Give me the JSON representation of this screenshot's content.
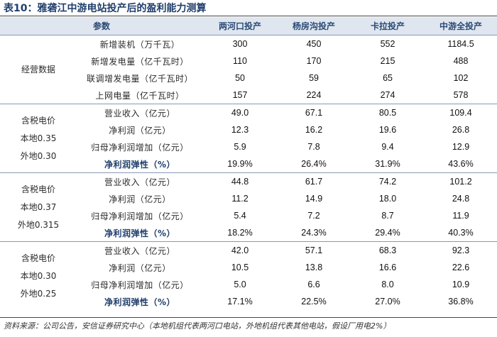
{
  "title": "表10：雅砻江中游电站投产后的盈利能力测算",
  "headers": [
    "参数",
    "两河口投产",
    "杨房沟投产",
    "卡拉投产",
    "中游全投产"
  ],
  "sections": [
    {
      "group": [
        "经营数据"
      ],
      "rows": [
        {
          "label": "新增装机（万千瓦）",
          "values": [
            "300",
            "450",
            "552",
            "1184.5"
          ]
        },
        {
          "label": "新增发电量（亿千瓦时）",
          "values": [
            "110",
            "170",
            "215",
            "488"
          ]
        },
        {
          "label": "联调增发电量（亿千瓦时）",
          "values": [
            "50",
            "59",
            "65",
            "102"
          ]
        },
        {
          "label": "上网电量（亿千瓦时）",
          "values": [
            "157",
            "224",
            "274",
            "578"
          ]
        }
      ]
    },
    {
      "group": [
        "含税电价",
        "本地0.35",
        "外地0.30"
      ],
      "rows": [
        {
          "label": "营业收入（亿元）",
          "values": [
            "49.0",
            "67.1",
            "80.5",
            "109.4"
          ]
        },
        {
          "label": "净利润（亿元）",
          "values": [
            "12.3",
            "16.2",
            "19.6",
            "26.8"
          ]
        },
        {
          "label": "归母净利润增加（亿元）",
          "values": [
            "5.9",
            "7.8",
            "9.4",
            "12.9"
          ]
        },
        {
          "label": "净利润弹性（%）",
          "values": [
            "19.9%",
            "26.4%",
            "31.9%",
            "43.6%"
          ]
        }
      ]
    },
    {
      "group": [
        "含税电价",
        "本地0.37",
        "外地0.315"
      ],
      "rows": [
        {
          "label": "营业收入（亿元）",
          "values": [
            "44.8",
            "61.7",
            "74.2",
            "101.2"
          ]
        },
        {
          "label": "净利润（亿元）",
          "values": [
            "11.2",
            "14.9",
            "18.0",
            "24.8"
          ]
        },
        {
          "label": "归母净利润增加（亿元）",
          "values": [
            "5.4",
            "7.2",
            "8.7",
            "11.9"
          ]
        },
        {
          "label": "净利润弹性（%）",
          "values": [
            "18.2%",
            "24.3%",
            "29.4%",
            "40.3%"
          ]
        }
      ]
    },
    {
      "group": [
        "含税电价",
        "本地0.30",
        "外地0.25"
      ],
      "rows": [
        {
          "label": "营业收入（亿元）",
          "values": [
            "42.0",
            "57.1",
            "68.3",
            "92.3"
          ]
        },
        {
          "label": "净利润（亿元）",
          "values": [
            "10.5",
            "13.8",
            "16.6",
            "22.6"
          ]
        },
        {
          "label": "归母净利润增加（亿元）",
          "values": [
            "5.0",
            "6.6",
            "8.0",
            "10.9"
          ]
        },
        {
          "label": "净利润弹性（%）",
          "values": [
            "17.1%",
            "22.5%",
            "27.0%",
            "36.8%"
          ]
        }
      ]
    }
  ],
  "footnote": "资料来源：公司公告，安信证券研究中心（本地机组代表两河口电站，外地机组代表其他电站，假设厂用电2%）"
}
